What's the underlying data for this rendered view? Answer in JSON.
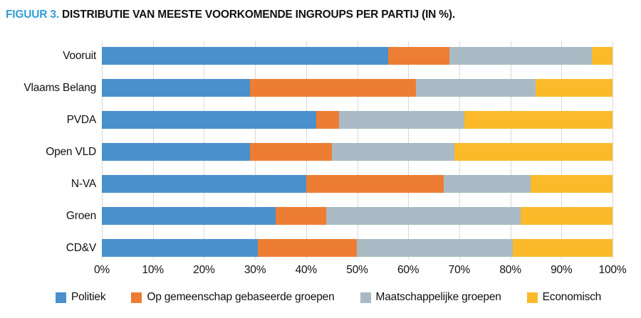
{
  "title": {
    "prefix": "FIGUUR 3.",
    "text": "DISTRIBUTIE VAN MEESTE VOORKOMENDE INGROUPS PER PARTIJ (IN %)."
  },
  "colors": {
    "title_accent": "#2E9ED6",
    "gridline": "#D9D9D9",
    "text": "#111111",
    "politiek": "#4A90CD",
    "gemeenschap": "#ED7D33",
    "maatschappelijk": "#A9BAC4",
    "economisch": "#FABA2A"
  },
  "chart_data": {
    "type": "bar",
    "orientation": "horizontal",
    "stacked": true,
    "title": "FIGUUR 3. DISTRIBUTIE VAN MEESTE VOORKOMENDE INGROUPS PER PARTIJ (IN %).",
    "categories": [
      "Vooruit",
      "Vlaams Belang",
      "PVDA",
      "Open VLD",
      "N-VA",
      "Groen",
      "CD&V"
    ],
    "series": [
      {
        "key": "politiek",
        "name": "Politiek",
        "color": "#4A90CD",
        "values": [
          56,
          29,
          42,
          29,
          40,
          34,
          30.5
        ]
      },
      {
        "key": "gemeenschap",
        "name": "Op gemeenschap gebaseerde groepen",
        "color": "#ED7D33",
        "values": [
          12,
          32.5,
          4.5,
          16,
          27,
          10,
          19.5
        ]
      },
      {
        "key": "maatschappelijk",
        "name": "Maatschappelijke groepen",
        "color": "#A9BAC4",
        "values": [
          28,
          23.5,
          24.5,
          24,
          17,
          38,
          30.5
        ]
      },
      {
        "key": "economisch",
        "name": "Economisch",
        "color": "#FABA2A",
        "values": [
          4,
          15,
          29,
          31,
          16,
          18,
          19.5
        ]
      }
    ],
    "x_axis": {
      "min": 0,
      "max": 100,
      "tick_step": 10,
      "tick_labels": [
        "0%",
        "10%",
        "20%",
        "30%",
        "40%",
        "50%",
        "60%",
        "70%",
        "80%",
        "90%",
        "100%"
      ]
    },
    "grid": "vertical",
    "legend_position": "bottom"
  }
}
